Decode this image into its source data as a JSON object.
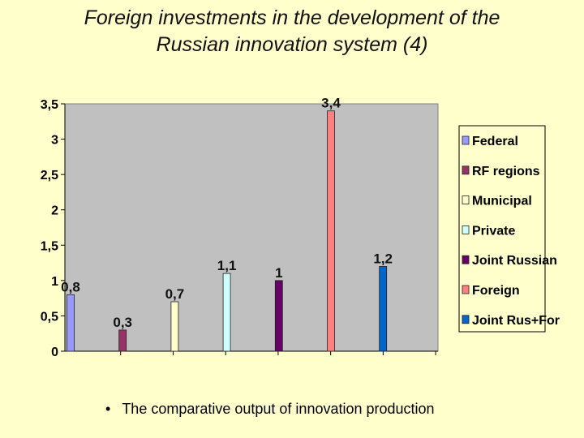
{
  "slide": {
    "title_line1": "Foreign investments in the development of the",
    "title_line2": "Russian innovation system (4)",
    "bullet": "The comparative output of innovation production"
  },
  "chart_data": {
    "type": "bar",
    "categories": [
      "Federal",
      "RF regions",
      "Municipal",
      "Private",
      "Joint Russian",
      "Foreign",
      "Joint Rus+For"
    ],
    "series": [
      {
        "name": "",
        "values": [
          0.8,
          0.3,
          0.7,
          1.1,
          1.0,
          3.4,
          1.2
        ],
        "labels": [
          "0,8",
          "0,3",
          "0,7",
          "1,1",
          "1",
          "3,4",
          "1,2"
        ],
        "colors": [
          "#9999ff",
          "#993366",
          "#ffffcc",
          "#ccffff",
          "#660066",
          "#ff8080",
          "#0066cc"
        ]
      }
    ],
    "legend": [
      "Federal",
      "RF regions",
      "Municipal",
      "Private",
      "Joint Russian",
      "Foreign",
      "Joint Rus+For"
    ],
    "legend_position": "right",
    "yticks": [
      "0",
      "0,5",
      "1",
      "1,5",
      "2",
      "2,5",
      "3",
      "3,5"
    ],
    "ylim": [
      0,
      3.5
    ],
    "plot_background": "#c0c0c0",
    "grid": false
  }
}
